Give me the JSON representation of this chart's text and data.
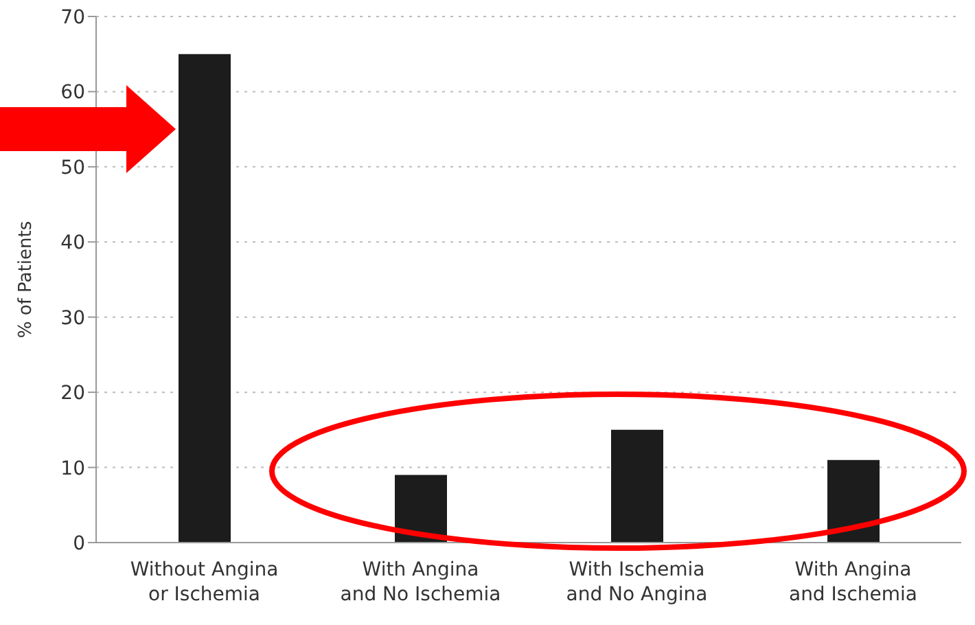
{
  "chart_data": {
    "type": "bar",
    "ylabel": "% of Patients",
    "categories": [
      "Without Angina\nor Ischemia",
      "With Angina\nand No Ischemia",
      "With Ischemia\nand No Angina",
      "With Angina\nand Ischemia"
    ],
    "values": [
      65,
      9,
      15,
      11
    ],
    "color": "#1c1c1c",
    "ylim": [
      0,
      70
    ],
    "yticks": [
      0,
      10,
      20,
      30,
      40,
      50,
      60,
      70
    ],
    "grid": "y"
  }
}
